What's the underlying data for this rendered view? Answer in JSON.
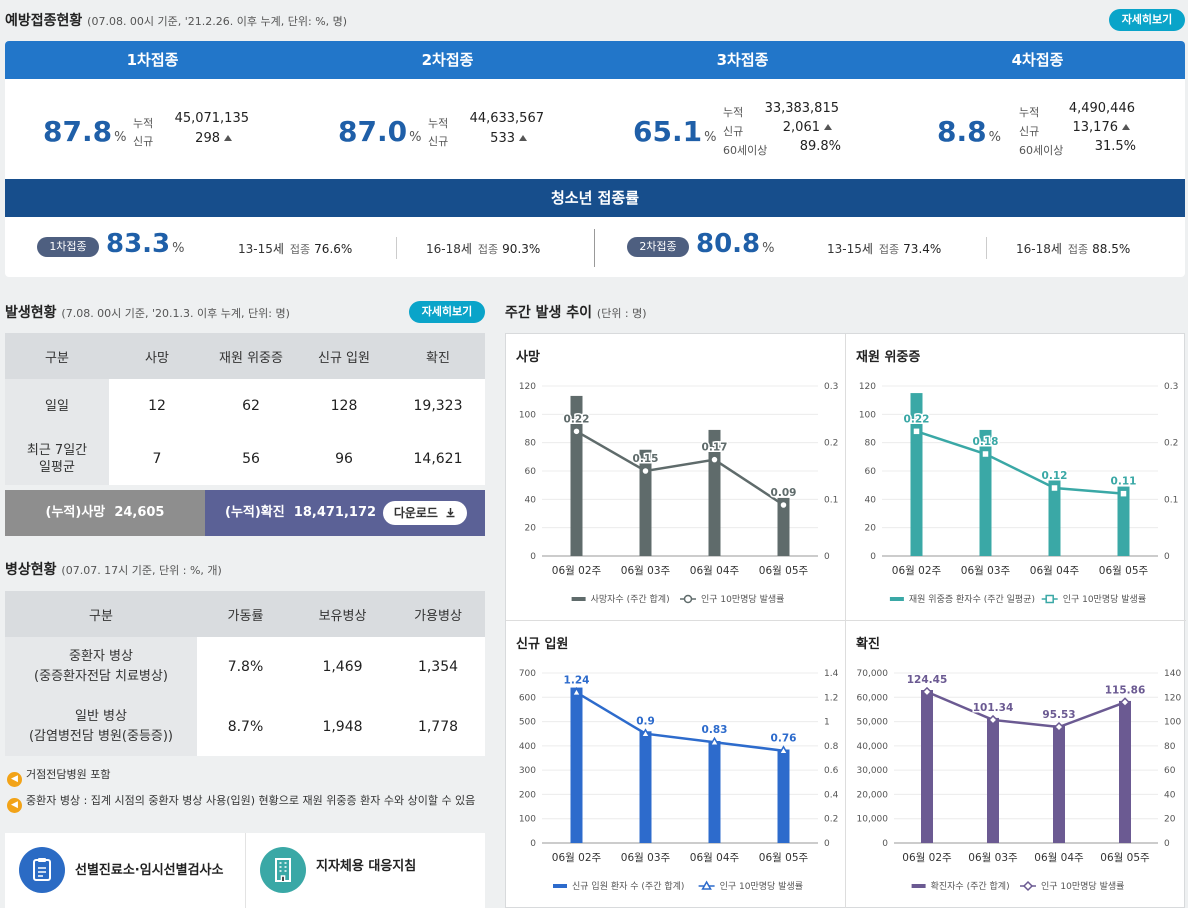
{
  "vaccination": {
    "title": "예방접종현황",
    "subtitle": "(07.08. 00시 기준, '21.2.26. 이후 누계, 단위: %, 명)",
    "more_label": "자세히보기",
    "doses": [
      {
        "label": "1차접종",
        "rate": "87.8",
        "unit": "%",
        "rows": [
          {
            "k": "누적",
            "v": "45,071,135"
          },
          {
            "k": "신규",
            "v": "298",
            "up": true
          }
        ]
      },
      {
        "label": "2차접종",
        "rate": "87.0",
        "unit": "%",
        "rows": [
          {
            "k": "누적",
            "v": "44,633,567"
          },
          {
            "k": "신규",
            "v": "533",
            "up": true
          }
        ]
      },
      {
        "label": "3차접종",
        "rate": "65.1",
        "unit": "%",
        "rows": [
          {
            "k": "누적",
            "v": "33,383,815"
          },
          {
            "k": "신규",
            "v": "2,061",
            "up": true
          },
          {
            "k": "60세이상",
            "v": "89.8%"
          }
        ]
      },
      {
        "label": "4차접종",
        "rate": "8.8",
        "unit": "%",
        "rows": [
          {
            "k": "누적",
            "v": "4,490,446"
          },
          {
            "k": "신규",
            "v": "13,176",
            "up": true
          },
          {
            "k": "60세이상",
            "v": "31.5%"
          }
        ]
      }
    ],
    "teen": {
      "title": "청소년 접종률",
      "first": {
        "pill": "1차접종",
        "rate": "83.3",
        "unit": "%",
        "a_age": "13-15세",
        "a_lbl": "접종",
        "a_val": "76.6%",
        "b_age": "16-18세",
        "b_lbl": "접종",
        "b_val": "90.3%"
      },
      "second": {
        "pill": "2차접종",
        "rate": "80.8",
        "unit": "%",
        "a_age": "13-15세",
        "a_lbl": "접종",
        "a_val": "73.4%",
        "b_age": "16-18세",
        "b_lbl": "접종",
        "b_val": "88.5%"
      }
    }
  },
  "outbreak": {
    "title": "발생현황",
    "subtitle": "(7.08. 00시 기준, '20.1.3. 이후 누계, 단위: 명)",
    "more_label": "자세히보기",
    "headers": [
      "구분",
      "사망",
      "재원 위중증",
      "신규 입원",
      "확진"
    ],
    "rows": [
      {
        "label": "일일",
        "cells": [
          "12",
          "62",
          "128",
          "19,323"
        ]
      },
      {
        "label": "최근 7일간\n일평균",
        "cells": [
          "7",
          "56",
          "96",
          "14,621"
        ]
      }
    ],
    "cum_death_label": "(누적)사망",
    "cum_death_value": "24,605",
    "cum_conf_label": "(누적)확진",
    "cum_conf_value": "18,471,172",
    "download_label": "다운로드"
  },
  "beds": {
    "title": "병상현황",
    "subtitle": "(07.07. 17시 기준, 단위 : %, 개)",
    "headers": [
      "구분",
      "가동률",
      "보유병상",
      "가용병상"
    ],
    "rows": [
      {
        "label": "중환자 병상\n(중증환자전담 치료병상)",
        "cells": [
          "7.8%",
          "1,469",
          "1,354"
        ]
      },
      {
        "label": "일반 병상\n(감염병전담 병원(중등증))",
        "cells": [
          "8.7%",
          "1,948",
          "1,778"
        ]
      }
    ],
    "notes": [
      "거점전담병원 포함",
      "중환자 병상 : 집계 시점의 중환자 병상 사용(입원) 현황으로 재원 위중증 환자 수와 상이할 수 있음"
    ]
  },
  "links": [
    {
      "label": "선별진료소·임시선별검사소",
      "icon": "clipboard-icon",
      "color": "#2b6bc4"
    },
    {
      "label": "지자체용 대응지침",
      "icon": "building-icon",
      "color": "#3aa8a6"
    }
  ],
  "weekly": {
    "title": "주간 발생 추이",
    "unit": "(단위 : 명)"
  },
  "chart_data": [
    {
      "type": "bar",
      "title": "사망",
      "categories": [
        "06월 02주",
        "06월 03주",
        "06월 04주",
        "06월 05주"
      ],
      "series": [
        {
          "name": "사망자수 (주간 합계)",
          "values": [
            113,
            75,
            89,
            41
          ]
        },
        {
          "name": "인구 10만명당 발생률",
          "values": [
            0.22,
            0.15,
            0.17,
            0.09
          ],
          "axis": "right"
        }
      ],
      "ylim": [
        0,
        120
      ],
      "yticks": [
        "0",
        "20",
        "40",
        "60",
        "80",
        "100",
        "120"
      ],
      "y2lim": [
        0,
        0.3
      ],
      "y2ticks": [
        "0",
        "0.1",
        "0.2",
        "0.3"
      ],
      "labels": [
        "0.22",
        "0.15",
        "0.17",
        "0.09"
      ],
      "bar_color": "#5f6b6b",
      "line_color": "#5f6b6b",
      "marker": "circle"
    },
    {
      "type": "bar",
      "title": "재원 위중증",
      "categories": [
        "06월 02주",
        "06월 03주",
        "06월 04주",
        "06월 05주"
      ],
      "series": [
        {
          "name": "재원 위중증 환자수 (주간 일평균)",
          "values": [
            115,
            89,
            55,
            49
          ]
        },
        {
          "name": "인구 10만명당 발생률",
          "values": [
            0.22,
            0.18,
            0.12,
            0.11
          ],
          "axis": "right"
        }
      ],
      "ylim": [
        0,
        120
      ],
      "yticks": [
        "0",
        "20",
        "40",
        "60",
        "80",
        "100",
        "120"
      ],
      "y2lim": [
        0,
        0.3
      ],
      "y2ticks": [
        "0",
        "0.1",
        "0.2",
        "0.3"
      ],
      "labels": [
        "0.22",
        "0.18",
        "0.12",
        "0.11"
      ],
      "bar_color": "#3aa8a6",
      "line_color": "#3aa8a6",
      "marker": "square"
    },
    {
      "type": "bar",
      "title": "신규 입원",
      "categories": [
        "06월 02주",
        "06월 03주",
        "06월 04주",
        "06월 05주"
      ],
      "series": [
        {
          "name": "신규 입원 환자 수 (주간 합계)",
          "values": [
            640,
            460,
            420,
            385
          ]
        },
        {
          "name": "인구 10만명당 발생률",
          "values": [
            1.24,
            0.9,
            0.83,
            0.76
          ],
          "axis": "right"
        }
      ],
      "ylim": [
        0,
        700
      ],
      "yticks": [
        "0",
        "100",
        "200",
        "300",
        "400",
        "500",
        "600",
        "700"
      ],
      "y2lim": [
        0,
        1.4
      ],
      "y2ticks": [
        "0",
        "0.2",
        "0.4",
        "0.6",
        "0.8",
        "1",
        "1.2",
        "1.4"
      ],
      "labels": [
        "1.24",
        "0.9",
        "0.83",
        "0.76"
      ],
      "bar_color": "#2d6bcc",
      "line_color": "#2d6bcc",
      "marker": "triangle"
    },
    {
      "type": "bar",
      "title": "확진",
      "categories": [
        "06월 02주",
        "06월 03주",
        "06월 04주",
        "06월 05주"
      ],
      "series": [
        {
          "name": "확진자수 (주간 합계)",
          "values": [
            63000,
            51500,
            48500,
            58500
          ]
        },
        {
          "name": "인구 10만명당 발생률",
          "values": [
            124.45,
            101.34,
            95.53,
            115.86
          ],
          "axis": "right"
        }
      ],
      "ylim": [
        0,
        70000
      ],
      "yticks": [
        "0",
        "10,000",
        "20,000",
        "30,000",
        "40,000",
        "50,000",
        "60,000",
        "70,000"
      ],
      "y2lim": [
        0,
        140
      ],
      "y2ticks": [
        "0",
        "20",
        "40",
        "60",
        "80",
        "100",
        "120",
        "140"
      ],
      "labels": [
        "124.45",
        "101.34",
        "95.53",
        "115.86"
      ],
      "bar_color": "#6b5a92",
      "line_color": "#6b5a92",
      "marker": "diamond"
    }
  ]
}
